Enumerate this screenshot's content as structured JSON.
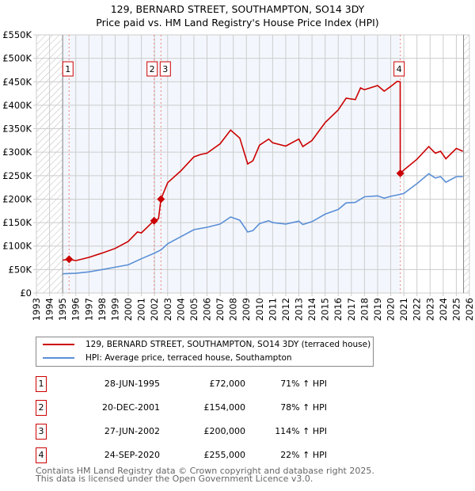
{
  "chart_data": {
    "type": "line",
    "title": "129, BERNARD STREET, SOUTHAMPTON, SO14 3DY",
    "subtitle": "Price paid vs. HM Land Registry's House Price Index (HPI)",
    "xlim": [
      1993,
      2026
    ],
    "ylim": [
      0,
      550000
    ],
    "x_ticks": [
      "1993",
      "1994",
      "1995",
      "1996",
      "1997",
      "1998",
      "1999",
      "2000",
      "2001",
      "2002",
      "2003",
      "2004",
      "2005",
      "2006",
      "2007",
      "2008",
      "2009",
      "2010",
      "2011",
      "2012",
      "2013",
      "2014",
      "2015",
      "2016",
      "2017",
      "2018",
      "2019",
      "2020",
      "2021",
      "2022",
      "2023",
      "2024",
      "2025",
      "2026"
    ],
    "y_ticks": [
      {
        "v": 0,
        "l": "£0"
      },
      {
        "v": 50000,
        "l": "£50K"
      },
      {
        "v": 100000,
        "l": "£100K"
      },
      {
        "v": 150000,
        "l": "£150K"
      },
      {
        "v": 200000,
        "l": "£200K"
      },
      {
        "v": 250000,
        "l": "£250K"
      },
      {
        "v": 300000,
        "l": "£300K"
      },
      {
        "v": 350000,
        "l": "£350K"
      },
      {
        "v": 400000,
        "l": "£400K"
      },
      {
        "v": 450000,
        "l": "£450K"
      },
      {
        "v": 500000,
        "l": "£500K"
      },
      {
        "v": 550000,
        "l": "£550K"
      }
    ],
    "grid": true,
    "series": [
      {
        "name": "129, BERNARD STREET, SOUTHAMPTON, SO14 3DY (terraced house)",
        "color": "#cc0000",
        "x": [
          1995.0,
          1995.5,
          1996,
          1997,
          1998,
          1999,
          2000,
          2000.7,
          2001,
          2001.96,
          2002.3,
          2002.49,
          2003,
          2004,
          2005,
          2005.5,
          2006,
          2007,
          2007.8,
          2008.5,
          2009.1,
          2009.5,
          2010,
          2010.7,
          2011,
          2012,
          2013,
          2013.3,
          2014,
          2015,
          2016,
          2016.6,
          2017.3,
          2017.7,
          2018,
          2019,
          2019.5,
          2020,
          2020.5,
          2020.72,
          2020.73,
          2021,
          2022,
          2022.9,
          2023.4,
          2023.8,
          2024.2,
          2025,
          2025.5
        ],
        "y": [
          70000,
          72000,
          69000,
          76000,
          85000,
          95000,
          110000,
          130000,
          128000,
          154000,
          158000,
          200000,
          235000,
          260000,
          290000,
          295000,
          298000,
          318000,
          347000,
          330000,
          275000,
          282000,
          315000,
          328000,
          320000,
          313000,
          328000,
          312000,
          325000,
          363000,
          390000,
          415000,
          412000,
          437000,
          433000,
          442000,
          430000,
          440000,
          451000,
          450000,
          255000,
          262000,
          285000,
          312000,
          298000,
          302000,
          286000,
          308000,
          302000
        ]
      },
      {
        "name": "HPI: Average price, terraced house, Southampton",
        "color": "#5b8fd6",
        "x": [
          1995.0,
          1996,
          1997,
          1998,
          1999,
          2000,
          2001,
          2002,
          2002.5,
          2003,
          2004,
          2005,
          2006,
          2007,
          2007.8,
          2008.5,
          2009.1,
          2009.5,
          2010,
          2010.7,
          2011,
          2012,
          2013,
          2013.3,
          2014,
          2015,
          2016,
          2016.6,
          2017.3,
          2018,
          2019,
          2019.5,
          2020,
          2020.7,
          2021,
          2022,
          2022.9,
          2023.4,
          2023.8,
          2024.2,
          2025,
          2025.5
        ],
        "y": [
          41000,
          42000,
          45000,
          50000,
          55000,
          60000,
          73000,
          85000,
          92000,
          105000,
          120000,
          135000,
          140000,
          147000,
          162000,
          155000,
          130000,
          133000,
          148000,
          154000,
          150000,
          147000,
          153000,
          146000,
          152000,
          168000,
          178000,
          192000,
          193000,
          205000,
          207000,
          202000,
          206000,
          210000,
          212000,
          233000,
          254000,
          245000,
          248000,
          236000,
          248000,
          248000
        ]
      }
    ],
    "sales": [
      {
        "n": "1",
        "x": 1995.49,
        "y": 72000,
        "date": "28-JUN-1995",
        "price": "£72,000",
        "hpi": "71% ↑ HPI"
      },
      {
        "n": "2",
        "x": 2001.97,
        "y": 154000,
        "date": "20-DEC-2001",
        "price": "£154,000",
        "hpi": "78% ↑ HPI"
      },
      {
        "n": "3",
        "x": 2002.49,
        "y": 200000,
        "date": "27-JUN-2002",
        "price": "£200,000",
        "hpi": "114% ↑ HPI"
      },
      {
        "n": "4",
        "x": 2020.73,
        "y": 255000,
        "date": "24-SEP-2020",
        "price": "£255,000",
        "hpi": "22% ↑ HPI"
      }
    ],
    "data_start": 1995.0,
    "data_end": 2025.55
  },
  "footer": {
    "line1": "Contains HM Land Registry data © Crown copyright and database right 2025.",
    "line2": "This data is licensed under the Open Government Licence v3.0."
  }
}
